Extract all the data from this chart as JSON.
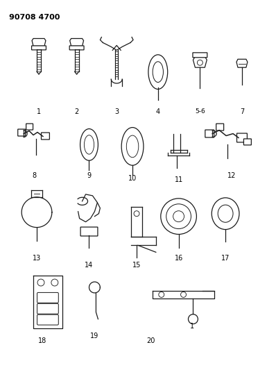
{
  "title": "90708 4700",
  "background_color": "#ffffff",
  "line_color": "#1a1a1a",
  "text_color": "#000000",
  "fig_width": 3.98,
  "fig_height": 5.33,
  "dpi": 100
}
